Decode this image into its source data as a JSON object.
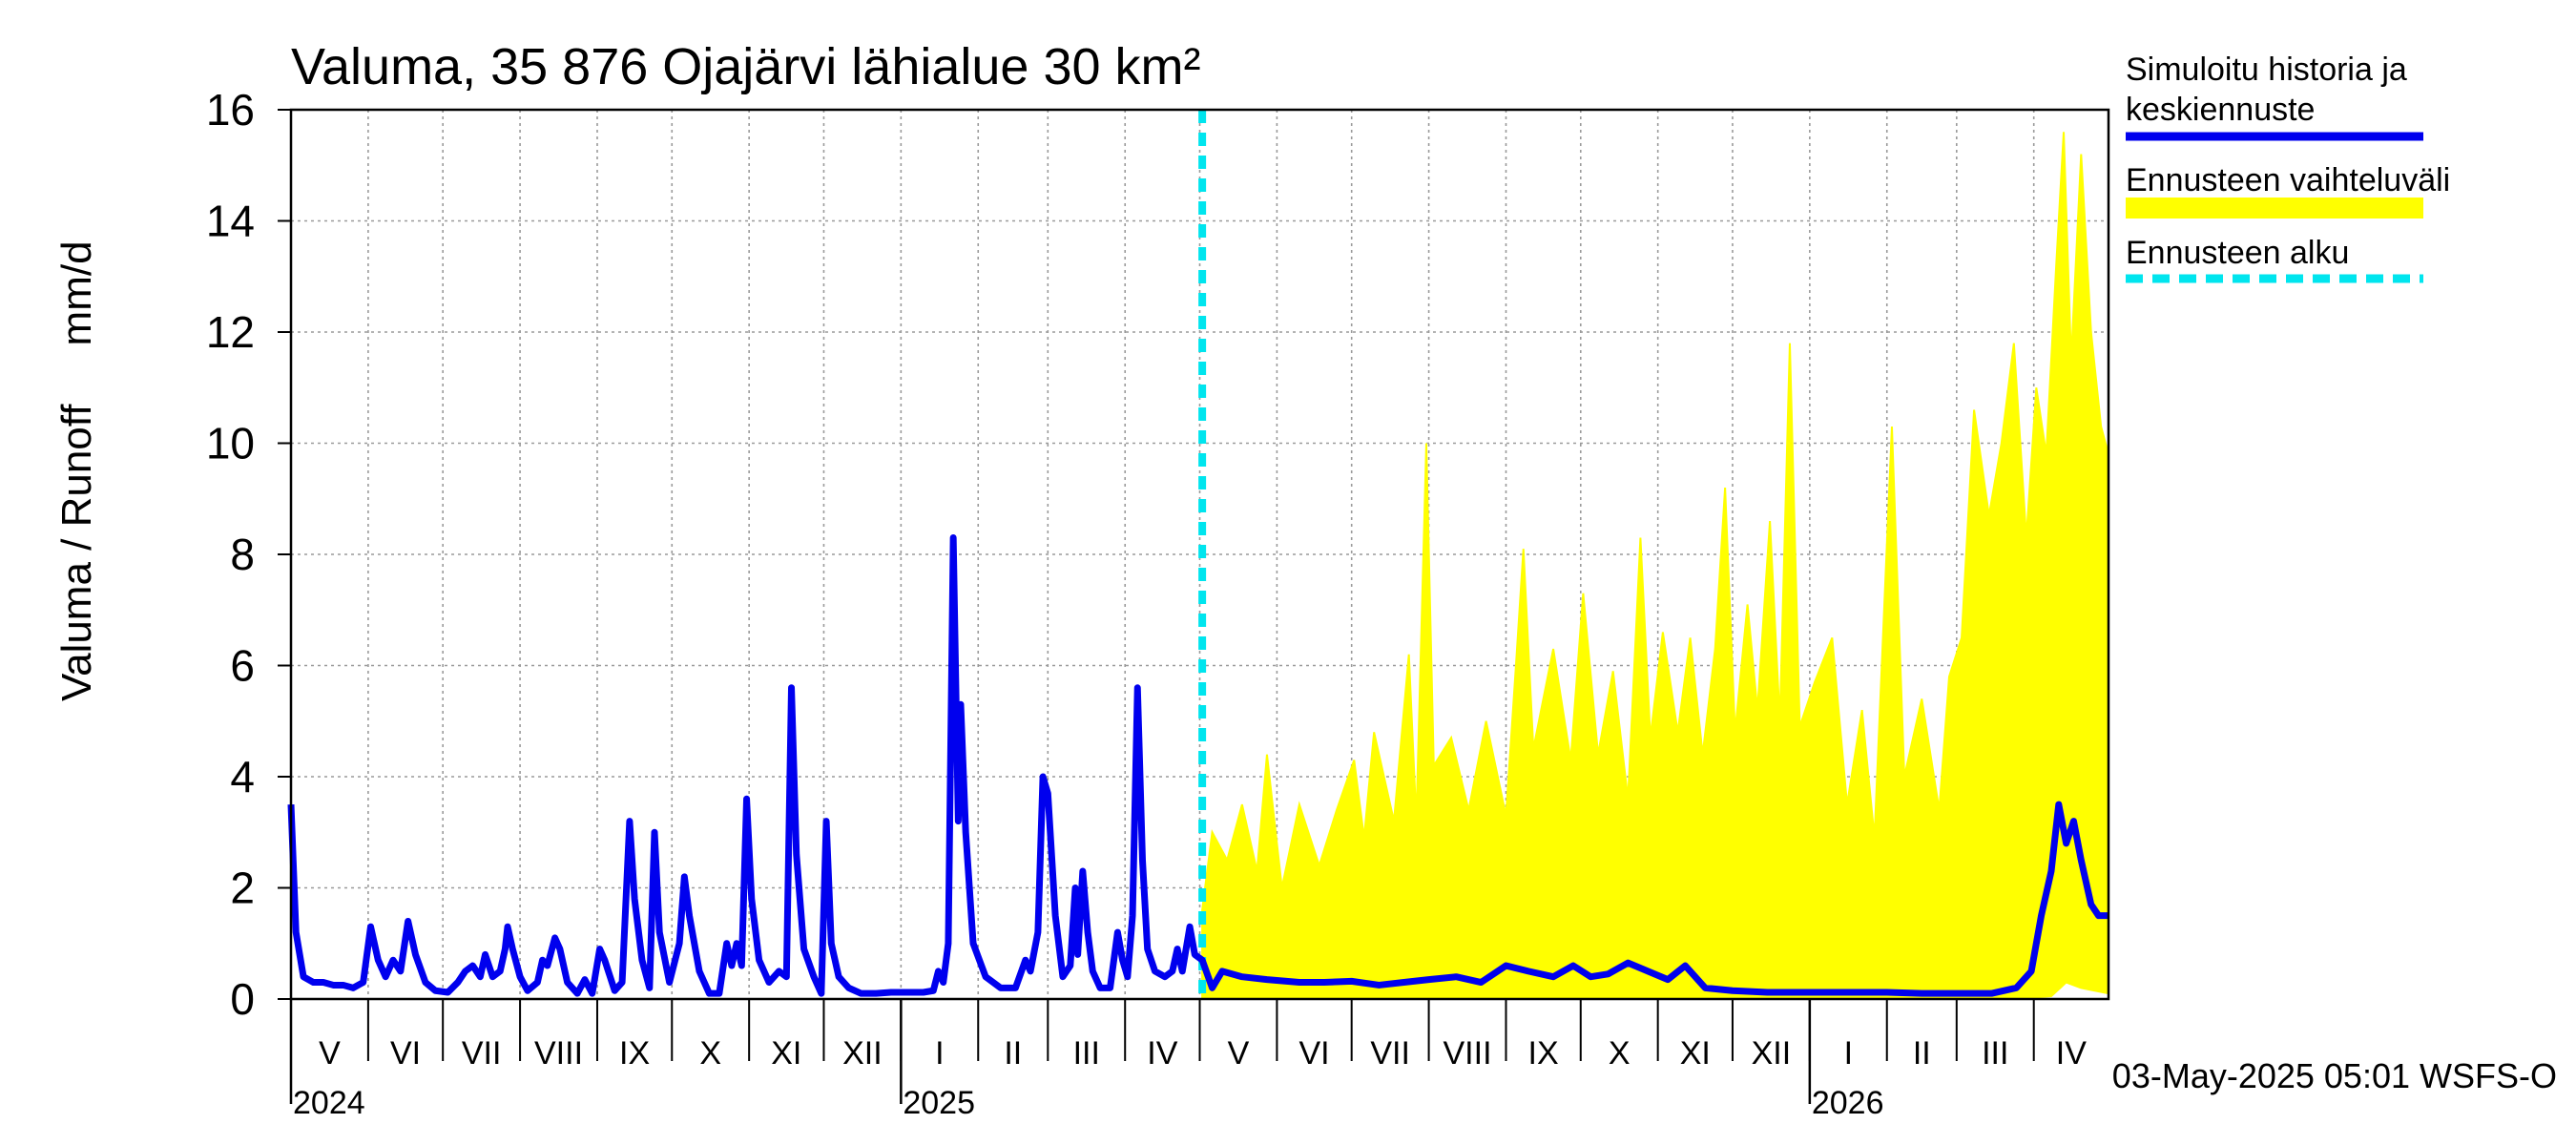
{
  "chart_data": {
    "type": "line",
    "title": "Valuma, 35 876 Ojajärvi lähialue 30 km²",
    "ylabel": "Valuma / Runoff     mm/d",
    "ylim": [
      0,
      16
    ],
    "yticks": [
      0,
      2,
      4,
      6,
      8,
      10,
      12,
      14,
      16
    ],
    "x_domain": [
      "2024-05-01",
      "2026-05-01"
    ],
    "grid": true,
    "legend_position": "right",
    "months": [
      {
        "label": "V",
        "start": "2024-05-01"
      },
      {
        "label": "VI",
        "start": "2024-06-01"
      },
      {
        "label": "VII",
        "start": "2024-07-01"
      },
      {
        "label": "VIII",
        "start": "2024-08-01"
      },
      {
        "label": "IX",
        "start": "2024-09-01"
      },
      {
        "label": "X",
        "start": "2024-10-01"
      },
      {
        "label": "XI",
        "start": "2024-11-01"
      },
      {
        "label": "XII",
        "start": "2024-12-01"
      },
      {
        "label": "I",
        "start": "2025-01-01"
      },
      {
        "label": "II",
        "start": "2025-02-01"
      },
      {
        "label": "III",
        "start": "2025-03-01"
      },
      {
        "label": "IV",
        "start": "2025-04-01"
      },
      {
        "label": "V",
        "start": "2025-05-01"
      },
      {
        "label": "VI",
        "start": "2025-06-01"
      },
      {
        "label": "VII",
        "start": "2025-07-01"
      },
      {
        "label": "VIII",
        "start": "2025-08-01"
      },
      {
        "label": "IX",
        "start": "2025-09-01"
      },
      {
        "label": "X",
        "start": "2025-10-01"
      },
      {
        "label": "XI",
        "start": "2025-11-01"
      },
      {
        "label": "XII",
        "start": "2025-12-01"
      },
      {
        "label": "I",
        "start": "2026-01-01"
      },
      {
        "label": "II",
        "start": "2026-02-01"
      },
      {
        "label": "III",
        "start": "2026-03-01"
      },
      {
        "label": "IV",
        "start": "2026-04-01"
      }
    ],
    "years": [
      {
        "label": "2024",
        "start": "2024-05-01"
      },
      {
        "label": "2025",
        "start": "2025-01-01"
      },
      {
        "label": "2026",
        "start": "2026-01-01"
      }
    ],
    "forecast_start": "2025-05-02",
    "series": [
      {
        "name": "Simuloitu historia ja keskiennuste",
        "color": "#0000ee",
        "points": [
          [
            "2024-05-01",
            3.5
          ],
          [
            "2024-05-03",
            1.2
          ],
          [
            "2024-05-06",
            0.4
          ],
          [
            "2024-05-10",
            0.3
          ],
          [
            "2024-05-14",
            0.3
          ],
          [
            "2024-05-18",
            0.25
          ],
          [
            "2024-05-22",
            0.25
          ],
          [
            "2024-05-26",
            0.2
          ],
          [
            "2024-05-30",
            0.3
          ],
          [
            "2024-06-02",
            1.3
          ],
          [
            "2024-06-05",
            0.7
          ],
          [
            "2024-06-08",
            0.4
          ],
          [
            "2024-06-11",
            0.7
          ],
          [
            "2024-06-14",
            0.5
          ],
          [
            "2024-06-17",
            1.4
          ],
          [
            "2024-06-20",
            0.8
          ],
          [
            "2024-06-24",
            0.3
          ],
          [
            "2024-06-28",
            0.15
          ],
          [
            "2024-07-03",
            0.12
          ],
          [
            "2024-07-07",
            0.3
          ],
          [
            "2024-07-10",
            0.5
          ],
          [
            "2024-07-13",
            0.6
          ],
          [
            "2024-07-16",
            0.4
          ],
          [
            "2024-07-18",
            0.8
          ],
          [
            "2024-07-21",
            0.4
          ],
          [
            "2024-07-24",
            0.5
          ],
          [
            "2024-07-26",
            0.9
          ],
          [
            "2024-07-27",
            1.3
          ],
          [
            "2024-07-29",
            0.9
          ],
          [
            "2024-08-01",
            0.4
          ],
          [
            "2024-08-04",
            0.15
          ],
          [
            "2024-08-08",
            0.3
          ],
          [
            "2024-08-10",
            0.7
          ],
          [
            "2024-08-12",
            0.6
          ],
          [
            "2024-08-15",
            1.1
          ],
          [
            "2024-08-17",
            0.9
          ],
          [
            "2024-08-20",
            0.3
          ],
          [
            "2024-08-24",
            0.1
          ],
          [
            "2024-08-27",
            0.35
          ],
          [
            "2024-08-30",
            0.1
          ],
          [
            "2024-09-02",
            0.9
          ],
          [
            "2024-09-04",
            0.7
          ],
          [
            "2024-09-08",
            0.15
          ],
          [
            "2024-09-11",
            0.3
          ],
          [
            "2024-09-14",
            3.2
          ],
          [
            "2024-09-16",
            1.8
          ],
          [
            "2024-09-19",
            0.7
          ],
          [
            "2024-09-22",
            0.2
          ],
          [
            "2024-09-24",
            3.0
          ],
          [
            "2024-09-26",
            1.2
          ],
          [
            "2024-09-30",
            0.3
          ],
          [
            "2024-10-04",
            1.0
          ],
          [
            "2024-10-06",
            2.2
          ],
          [
            "2024-10-08",
            1.5
          ],
          [
            "2024-10-12",
            0.5
          ],
          [
            "2024-10-16",
            0.1
          ],
          [
            "2024-10-20",
            0.1
          ],
          [
            "2024-10-23",
            1.0
          ],
          [
            "2024-10-25",
            0.6
          ],
          [
            "2024-10-27",
            1.0
          ],
          [
            "2024-10-29",
            0.6
          ],
          [
            "2024-10-31",
            3.6
          ],
          [
            "2024-11-02",
            1.8
          ],
          [
            "2024-11-05",
            0.7
          ],
          [
            "2024-11-09",
            0.3
          ],
          [
            "2024-11-13",
            0.5
          ],
          [
            "2024-11-16",
            0.4
          ],
          [
            "2024-11-18",
            5.6
          ],
          [
            "2024-11-20",
            2.6
          ],
          [
            "2024-11-23",
            0.9
          ],
          [
            "2024-11-27",
            0.4
          ],
          [
            "2024-11-30",
            0.1
          ],
          [
            "2024-12-02",
            3.2
          ],
          [
            "2024-12-04",
            1.0
          ],
          [
            "2024-12-07",
            0.4
          ],
          [
            "2024-12-11",
            0.2
          ],
          [
            "2024-12-16",
            0.1
          ],
          [
            "2024-12-22",
            0.1
          ],
          [
            "2024-12-28",
            0.12
          ],
          [
            "2025-01-04",
            0.12
          ],
          [
            "2025-01-10",
            0.12
          ],
          [
            "2025-01-14",
            0.15
          ],
          [
            "2025-01-16",
            0.5
          ],
          [
            "2025-01-18",
            0.3
          ],
          [
            "2025-01-20",
            1.0
          ],
          [
            "2025-01-22",
            8.3
          ],
          [
            "2025-01-24",
            3.2
          ],
          [
            "2025-01-25",
            5.3
          ],
          [
            "2025-01-27",
            3.0
          ],
          [
            "2025-01-30",
            1.0
          ],
          [
            "2025-02-04",
            0.4
          ],
          [
            "2025-02-10",
            0.2
          ],
          [
            "2025-02-16",
            0.2
          ],
          [
            "2025-02-20",
            0.7
          ],
          [
            "2025-02-22",
            0.5
          ],
          [
            "2025-02-25",
            1.2
          ],
          [
            "2025-02-27",
            4.0
          ],
          [
            "2025-03-01",
            3.7
          ],
          [
            "2025-03-04",
            1.5
          ],
          [
            "2025-03-07",
            0.4
          ],
          [
            "2025-03-10",
            0.6
          ],
          [
            "2025-03-12",
            2.0
          ],
          [
            "2025-03-13",
            0.8
          ],
          [
            "2025-03-15",
            2.3
          ],
          [
            "2025-03-17",
            1.2
          ],
          [
            "2025-03-19",
            0.5
          ],
          [
            "2025-03-22",
            0.2
          ],
          [
            "2025-03-26",
            0.2
          ],
          [
            "2025-03-29",
            1.2
          ],
          [
            "2025-03-31",
            0.7
          ],
          [
            "2025-04-02",
            0.4
          ],
          [
            "2025-04-04",
            1.5
          ],
          [
            "2025-04-06",
            5.6
          ],
          [
            "2025-04-08",
            2.5
          ],
          [
            "2025-04-10",
            0.9
          ],
          [
            "2025-04-13",
            0.5
          ],
          [
            "2025-04-17",
            0.4
          ],
          [
            "2025-04-20",
            0.5
          ],
          [
            "2025-04-22",
            0.9
          ],
          [
            "2025-04-24",
            0.5
          ],
          [
            "2025-04-27",
            1.3
          ],
          [
            "2025-04-29",
            0.8
          ],
          [
            "2025-05-02",
            0.7
          ],
          [
            "2025-05-06",
            0.2
          ],
          [
            "2025-05-10",
            0.5
          ],
          [
            "2025-05-18",
            0.4
          ],
          [
            "2025-05-28",
            0.35
          ],
          [
            "2025-06-10",
            0.3
          ],
          [
            "2025-06-20",
            0.3
          ],
          [
            "2025-07-01",
            0.32
          ],
          [
            "2025-07-12",
            0.25
          ],
          [
            "2025-07-22",
            0.3
          ],
          [
            "2025-08-01",
            0.35
          ],
          [
            "2025-08-12",
            0.4
          ],
          [
            "2025-08-22",
            0.3
          ],
          [
            "2025-09-01",
            0.6
          ],
          [
            "2025-09-10",
            0.5
          ],
          [
            "2025-09-20",
            0.4
          ],
          [
            "2025-09-28",
            0.6
          ],
          [
            "2025-10-05",
            0.4
          ],
          [
            "2025-10-12",
            0.45
          ],
          [
            "2025-10-20",
            0.65
          ],
          [
            "2025-10-28",
            0.5
          ],
          [
            "2025-11-05",
            0.35
          ],
          [
            "2025-11-12",
            0.6
          ],
          [
            "2025-11-20",
            0.2
          ],
          [
            "2025-12-01",
            0.15
          ],
          [
            "2025-12-15",
            0.12
          ],
          [
            "2026-01-01",
            0.12
          ],
          [
            "2026-01-15",
            0.12
          ],
          [
            "2026-02-01",
            0.12
          ],
          [
            "2026-02-15",
            0.1
          ],
          [
            "2026-03-01",
            0.1
          ],
          [
            "2026-03-15",
            0.1
          ],
          [
            "2026-03-25",
            0.2
          ],
          [
            "2026-03-31",
            0.5
          ],
          [
            "2026-04-04",
            1.5
          ],
          [
            "2026-04-08",
            2.3
          ],
          [
            "2026-04-11",
            3.5
          ],
          [
            "2026-04-14",
            2.8
          ],
          [
            "2026-04-17",
            3.2
          ],
          [
            "2026-04-20",
            2.5
          ],
          [
            "2026-04-24",
            1.7
          ],
          [
            "2026-04-27",
            1.5
          ],
          [
            "2026-05-01",
            1.5
          ]
        ]
      },
      {
        "name": "Ennusteen vaihteluväli",
        "color": "#ffff00",
        "upper": [
          [
            "2025-05-02",
            1.6
          ],
          [
            "2025-05-06",
            3.0
          ],
          [
            "2025-05-12",
            2.5
          ],
          [
            "2025-05-18",
            3.5
          ],
          [
            "2025-05-24",
            2.3
          ],
          [
            "2025-05-28",
            4.4
          ],
          [
            "2025-06-03",
            2.0
          ],
          [
            "2025-06-10",
            3.5
          ],
          [
            "2025-06-18",
            2.4
          ],
          [
            "2025-06-25",
            3.4
          ],
          [
            "2025-07-02",
            4.3
          ],
          [
            "2025-07-06",
            2.9
          ],
          [
            "2025-07-10",
            4.8
          ],
          [
            "2025-07-18",
            3.2
          ],
          [
            "2025-07-24",
            6.2
          ],
          [
            "2025-07-27",
            3.2
          ],
          [
            "2025-07-31",
            10.0
          ],
          [
            "2025-08-03",
            4.2
          ],
          [
            "2025-08-10",
            4.7
          ],
          [
            "2025-08-17",
            3.4
          ],
          [
            "2025-08-24",
            5.0
          ],
          [
            "2025-09-01",
            3.3
          ],
          [
            "2025-09-05",
            6.0
          ],
          [
            "2025-09-08",
            8.1
          ],
          [
            "2025-09-12",
            4.5
          ],
          [
            "2025-09-20",
            6.3
          ],
          [
            "2025-09-27",
            4.3
          ],
          [
            "2025-10-02",
            7.3
          ],
          [
            "2025-10-08",
            4.4
          ],
          [
            "2025-10-14",
            5.9
          ],
          [
            "2025-10-20",
            3.6
          ],
          [
            "2025-10-25",
            8.3
          ],
          [
            "2025-10-29",
            4.7
          ],
          [
            "2025-11-03",
            6.6
          ],
          [
            "2025-11-09",
            4.8
          ],
          [
            "2025-11-14",
            6.5
          ],
          [
            "2025-11-19",
            4.4
          ],
          [
            "2025-11-24",
            6.3
          ],
          [
            "2025-11-28",
            9.2
          ],
          [
            "2025-12-02",
            4.8
          ],
          [
            "2025-12-07",
            7.1
          ],
          [
            "2025-12-11",
            5.2
          ],
          [
            "2025-12-16",
            8.6
          ],
          [
            "2025-12-20",
            5.0
          ],
          [
            "2025-12-24",
            11.8
          ],
          [
            "2025-12-28",
            4.9
          ],
          [
            "2026-01-03",
            5.7
          ],
          [
            "2026-01-10",
            6.5
          ],
          [
            "2026-01-16",
            3.5
          ],
          [
            "2026-01-22",
            5.2
          ],
          [
            "2026-01-27",
            2.9
          ],
          [
            "2026-02-03",
            10.3
          ],
          [
            "2026-02-08",
            4.0
          ],
          [
            "2026-02-15",
            5.4
          ],
          [
            "2026-02-22",
            3.4
          ],
          [
            "2026-02-26",
            5.8
          ],
          [
            "2026-03-03",
            6.5
          ],
          [
            "2026-03-08",
            10.6
          ],
          [
            "2026-03-14",
            8.7
          ],
          [
            "2026-03-19",
            10.0
          ],
          [
            "2026-03-24",
            11.8
          ],
          [
            "2026-03-29",
            8.3
          ],
          [
            "2026-04-02",
            11.0
          ],
          [
            "2026-04-06",
            9.8
          ],
          [
            "2026-04-10",
            13.2
          ],
          [
            "2026-04-13",
            15.6
          ],
          [
            "2026-04-16",
            11.5
          ],
          [
            "2026-04-20",
            15.2
          ],
          [
            "2026-04-24",
            12.0
          ],
          [
            "2026-04-28",
            10.3
          ],
          [
            "2026-05-01",
            9.8
          ]
        ],
        "lower": [
          [
            "2025-05-02",
            0.0
          ],
          [
            "2026-03-25",
            0.0
          ],
          [
            "2026-04-08",
            0.05
          ],
          [
            "2026-04-14",
            0.3
          ],
          [
            "2026-04-20",
            0.2
          ],
          [
            "2026-05-01",
            0.1
          ]
        ]
      },
      {
        "name": "Ennusteen alku",
        "color": "#00e5ee",
        "date": "2025-05-02"
      }
    ],
    "legend": [
      {
        "label": "Simuloitu historia ja keskiennuste",
        "color": "#0000ee",
        "style": "solid"
      },
      {
        "label": "Ennusteen vaihteluväli",
        "color": "#ffff00",
        "style": "band"
      },
      {
        "label": "Ennusteen alku",
        "color": "#00e5ee",
        "style": "dashed"
      }
    ],
    "footer": "03-May-2025 05:01 WSFS-O"
  }
}
